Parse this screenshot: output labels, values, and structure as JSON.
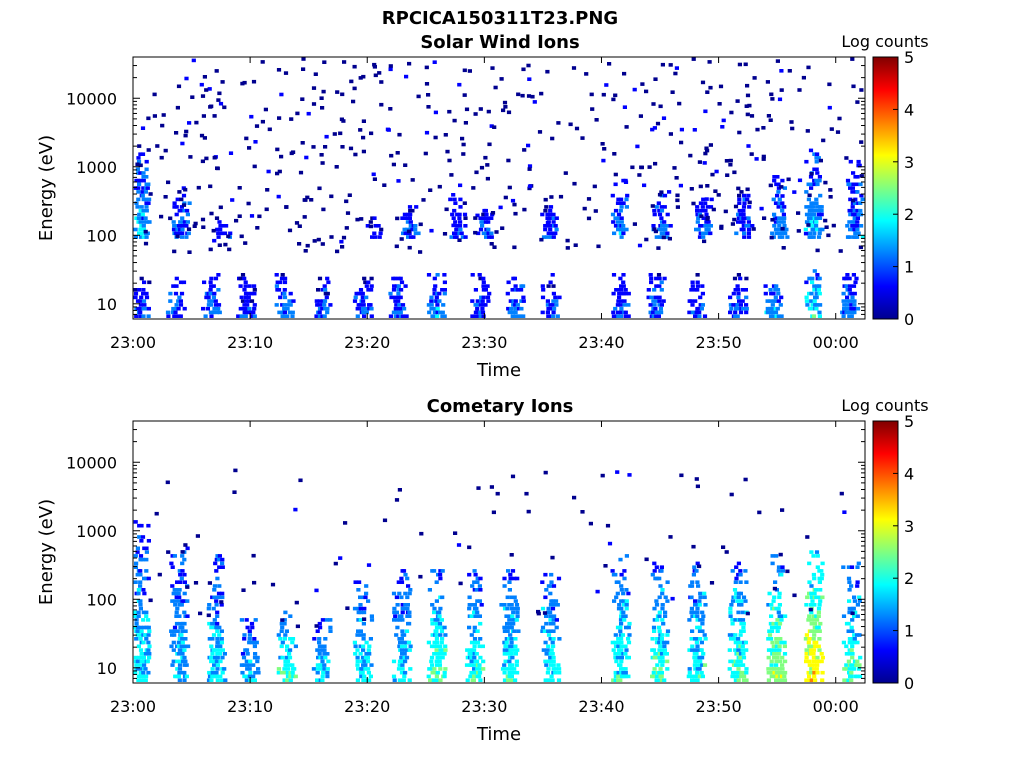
{
  "figure": {
    "title": "RPCICA150311T23.PNG"
  },
  "colormap": [
    "#00008f",
    "#0000ff",
    "#0080ff",
    "#00ffff",
    "#80ff80",
    "#ffff00",
    "#ff8000",
    "#ff0000",
    "#800000"
  ],
  "chart_data": [
    {
      "type": "heatmap",
      "title": "Solar Wind Ions",
      "xlabel": "Time",
      "ylabel": "Energy (eV)",
      "x_ticks": [
        "23:00",
        "23:10",
        "23:20",
        "23:30",
        "23:40",
        "23:50",
        "00:00"
      ],
      "x_range": [
        "23:00",
        "00:02:30"
      ],
      "y_scale": "log",
      "y_ticks": [
        "10",
        "100",
        "1000",
        "10000"
      ],
      "y_range": [
        6,
        40000
      ],
      "colorbar": {
        "title": "Log counts",
        "ticks": [
          "0",
          "1",
          "2",
          "3",
          "4",
          "5"
        ],
        "range": [
          0,
          5
        ]
      },
      "events": [
        {
          "t": 0.5,
          "lo": 7,
          "hi": 30,
          "c": 1.0
        },
        {
          "t": 0.5,
          "lo": 100,
          "hi": 2000,
          "c": 1.5
        },
        {
          "t": 3.5,
          "lo": 7,
          "hi": 25,
          "c": 1.0
        },
        {
          "t": 4.0,
          "lo": 100,
          "hi": 600,
          "c": 1.0
        },
        {
          "t": 6.5,
          "lo": 7,
          "hi": 30,
          "c": 1.2
        },
        {
          "t": 7.5,
          "lo": 100,
          "hi": 200,
          "c": 0.8
        },
        {
          "t": 9.5,
          "lo": 7,
          "hi": 30,
          "c": 0.8
        },
        {
          "t": 12.8,
          "lo": 7,
          "hi": 30,
          "c": 1.3
        },
        {
          "t": 16.0,
          "lo": 7,
          "hi": 30,
          "c": 0.9
        },
        {
          "t": 19.5,
          "lo": 7,
          "hi": 30,
          "c": 1.0
        },
        {
          "t": 20.5,
          "lo": 100,
          "hi": 200,
          "c": 0.8
        },
        {
          "t": 22.5,
          "lo": 7,
          "hi": 30,
          "c": 1.0
        },
        {
          "t": 23.5,
          "lo": 100,
          "hi": 300,
          "c": 0.9
        },
        {
          "t": 25.8,
          "lo": 7,
          "hi": 30,
          "c": 1.3
        },
        {
          "t": 27.5,
          "lo": 100,
          "hi": 400,
          "c": 0.8
        },
        {
          "t": 29.5,
          "lo": 7,
          "hi": 30,
          "c": 1.0
        },
        {
          "t": 30.0,
          "lo": 100,
          "hi": 250,
          "c": 1.0
        },
        {
          "t": 32.5,
          "lo": 7,
          "hi": 30,
          "c": 1.2
        },
        {
          "t": 35.5,
          "lo": 7,
          "hi": 30,
          "c": 0.9
        },
        {
          "t": 35.5,
          "lo": 100,
          "hi": 300,
          "c": 0.9
        },
        {
          "t": 41.5,
          "lo": 7,
          "hi": 30,
          "c": 0.9
        },
        {
          "t": 41.5,
          "lo": 100,
          "hi": 700,
          "c": 1.3
        },
        {
          "t": 44.5,
          "lo": 7,
          "hi": 30,
          "c": 1.1
        },
        {
          "t": 45.0,
          "lo": 100,
          "hi": 500,
          "c": 1.2
        },
        {
          "t": 48.0,
          "lo": 7,
          "hi": 30,
          "c": 1.0
        },
        {
          "t": 48.5,
          "lo": 100,
          "hi": 400,
          "c": 1.1
        },
        {
          "t": 51.5,
          "lo": 7,
          "hi": 30,
          "c": 0.9
        },
        {
          "t": 52.0,
          "lo": 100,
          "hi": 500,
          "c": 1.0
        },
        {
          "t": 54.5,
          "lo": 7,
          "hi": 30,
          "c": 1.4
        },
        {
          "t": 55.0,
          "lo": 100,
          "hi": 800,
          "c": 1.3
        },
        {
          "t": 58.0,
          "lo": 7,
          "hi": 40,
          "c": 1.9
        },
        {
          "t": 58.0,
          "lo": 100,
          "hi": 2000,
          "c": 1.5
        },
        {
          "t": 61.0,
          "lo": 7,
          "hi": 30,
          "c": 1.2
        },
        {
          "t": 61.5,
          "lo": 100,
          "hi": 1500,
          "c": 1.2
        }
      ]
    },
    {
      "type": "heatmap",
      "title": "Cometary Ions",
      "xlabel": "Time",
      "ylabel": "Energy (eV)",
      "x_ticks": [
        "23:00",
        "23:10",
        "23:20",
        "23:30",
        "23:40",
        "23:50",
        "00:00"
      ],
      "x_range": [
        "23:00",
        "00:02:30"
      ],
      "y_scale": "log",
      "y_ticks": [
        "10",
        "100",
        "1000",
        "10000"
      ],
      "y_range": [
        6,
        40000
      ],
      "colorbar": {
        "title": "Log counts",
        "ticks": [
          "0",
          "1",
          "2",
          "3",
          "4",
          "5"
        ],
        "range": [
          0,
          5
        ]
      },
      "events": [
        {
          "t": 0.5,
          "lo": 7,
          "hi": 1500,
          "c": 1.8
        },
        {
          "t": 3.8,
          "lo": 7,
          "hi": 600,
          "c": 1.6
        },
        {
          "t": 7.0,
          "lo": 7,
          "hi": 500,
          "c": 1.7
        },
        {
          "t": 9.8,
          "lo": 7,
          "hi": 60,
          "c": 1.5
        },
        {
          "t": 13.0,
          "lo": 7,
          "hi": 80,
          "c": 2.2
        },
        {
          "t": 16.0,
          "lo": 7,
          "hi": 60,
          "c": 1.8
        },
        {
          "t": 19.5,
          "lo": 7,
          "hi": 200,
          "c": 1.8
        },
        {
          "t": 22.8,
          "lo": 7,
          "hi": 300,
          "c": 1.8
        },
        {
          "t": 25.8,
          "lo": 7,
          "hi": 300,
          "c": 2.2
        },
        {
          "t": 29.0,
          "lo": 7,
          "hi": 300,
          "c": 2.0
        },
        {
          "t": 32.0,
          "lo": 7,
          "hi": 300,
          "c": 1.9
        },
        {
          "t": 35.5,
          "lo": 7,
          "hi": 250,
          "c": 1.9
        },
        {
          "t": 41.5,
          "lo": 7,
          "hi": 500,
          "c": 2.0
        },
        {
          "t": 44.8,
          "lo": 7,
          "hi": 400,
          "c": 2.1
        },
        {
          "t": 48.0,
          "lo": 7,
          "hi": 400,
          "c": 2.0
        },
        {
          "t": 51.5,
          "lo": 7,
          "hi": 400,
          "c": 2.2
        },
        {
          "t": 54.8,
          "lo": 7,
          "hi": 500,
          "c": 2.6
        },
        {
          "t": 58.0,
          "lo": 7,
          "hi": 600,
          "c": 3.2
        },
        {
          "t": 61.2,
          "lo": 7,
          "hi": 400,
          "c": 2.2
        }
      ]
    }
  ]
}
